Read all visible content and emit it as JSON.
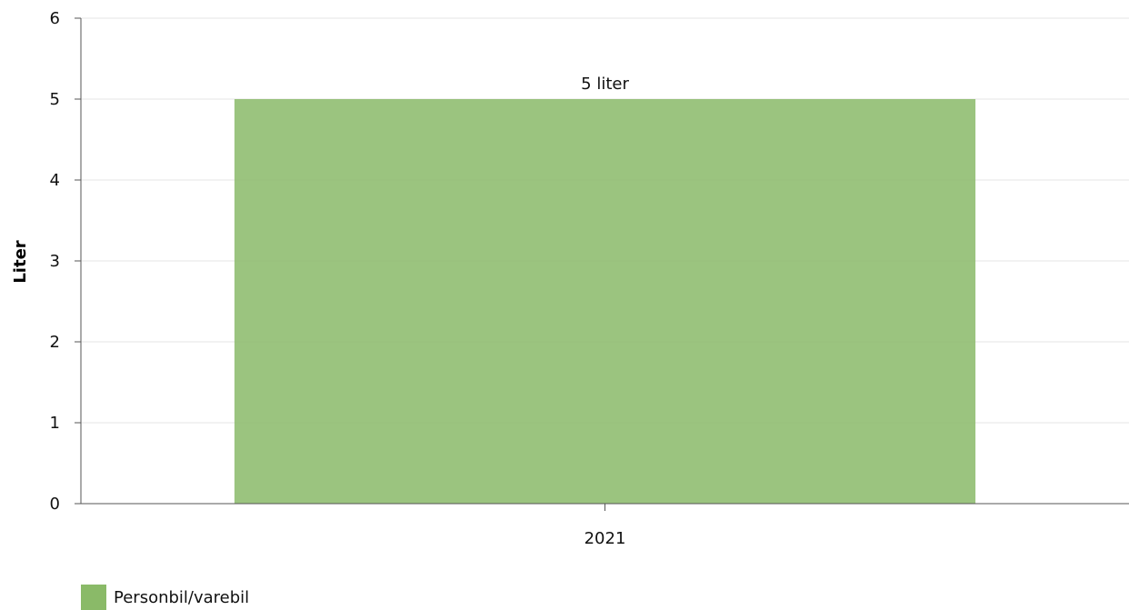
{
  "chart_data": {
    "type": "bar",
    "categories": [
      "2021"
    ],
    "series": [
      {
        "name": "Personbil/varebil",
        "values": [
          5
        ],
        "color": "#8aba68",
        "data_labels": [
          "5 liter"
        ]
      }
    ],
    "xlabel": "",
    "ylabel": "Liter",
    "ylim": [
      0,
      6
    ],
    "yticks": [
      "0",
      "1",
      "2",
      "3",
      "4",
      "5",
      "6"
    ],
    "grid": true,
    "legend_position": "bottom-left"
  }
}
